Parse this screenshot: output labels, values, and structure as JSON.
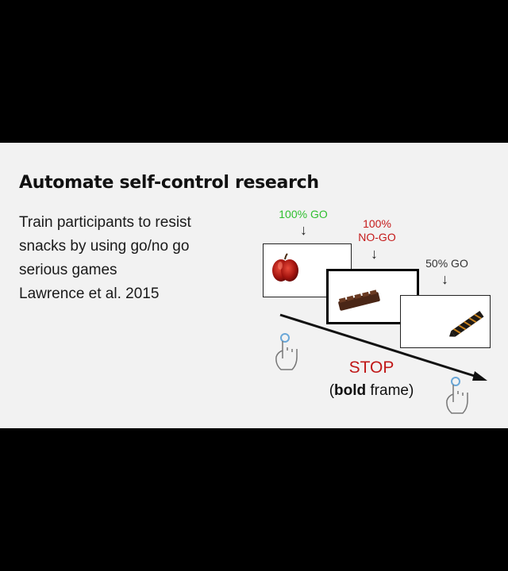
{
  "slide": {
    "title": "Automate self-control research",
    "body_lines": [
      "Train participants to resist",
      "snacks by using go/no go",
      "serious games",
      "Lawrence et al. 2015"
    ]
  },
  "figure": {
    "label_go100": "100% GO",
    "label_nogo_line1": "100%",
    "label_nogo_line2": "NO-GO",
    "label_go50": "50% GO",
    "arrow_glyph": "↓",
    "stop_label": "STOP",
    "bold_word": "bold",
    "frame_word": "frame)",
    "open_paren": "("
  },
  "colors": {
    "go": "#2fbf2f",
    "nogo": "#c51a1a",
    "stop": "#c01818"
  },
  "icons": [
    "apple-icon",
    "chocolate-bar-icon",
    "tie-icon",
    "hand-tap-icon"
  ]
}
